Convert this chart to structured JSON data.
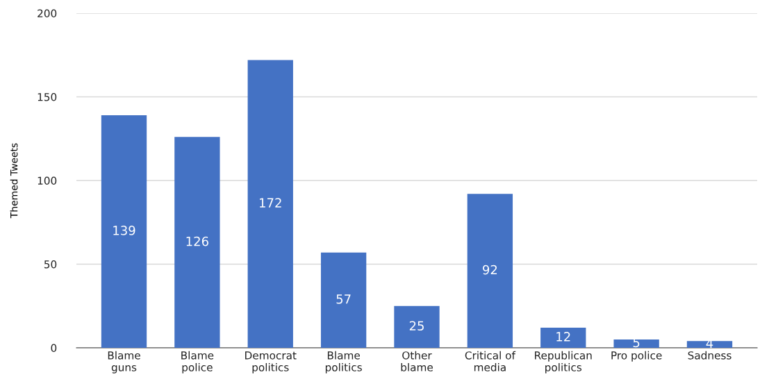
{
  "chart_data": {
    "type": "bar",
    "ylabel": "Themed Tweets",
    "categories": [
      "Blame\nguns",
      "Blame\npolice",
      "Democrat\npolitics",
      "Blame\npolitics",
      "Other\nblame",
      "Critical of\nmedia",
      "Republican\npolitics",
      "Pro police",
      "Sadness"
    ],
    "values": [
      139,
      126,
      172,
      57,
      25,
      92,
      12,
      5,
      4
    ],
    "color": "#4472c4",
    "ylim": [
      0,
      200
    ],
    "yticks": [
      0,
      50,
      100,
      150,
      200
    ],
    "grid": "y",
    "data_labels": true,
    "legend": false
  }
}
